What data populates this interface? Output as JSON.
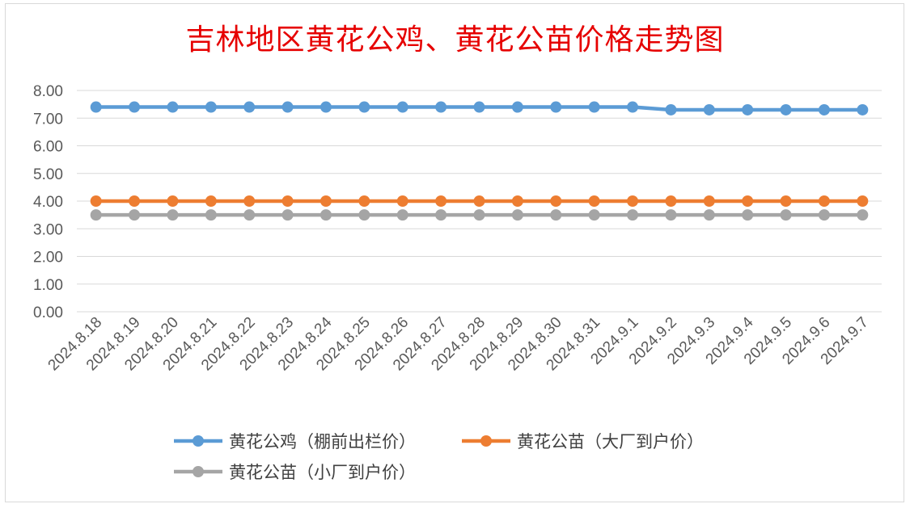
{
  "chart_data": {
    "type": "line",
    "title": "吉林地区黄花公鸡、黄花公苗价格走势图",
    "xlabel": "",
    "ylabel": "",
    "ylim": [
      0,
      8
    ],
    "yticks": [
      "0.00",
      "1.00",
      "2.00",
      "3.00",
      "4.00",
      "5.00",
      "6.00",
      "7.00",
      "8.00"
    ],
    "grid": true,
    "legend_position": "bottom",
    "categories": [
      "2024.8.18",
      "2024.8.19",
      "2024.8.20",
      "2024.8.21",
      "2024.8.22",
      "2024.8.23",
      "2024.8.24",
      "2024.8.25",
      "2024.8.26",
      "2024.8.27",
      "2024.8.28",
      "2024.8.29",
      "2024.8.30",
      "2024.8.31",
      "2024.9.1",
      "2024.9.2",
      "2024.9.3",
      "2024.9.4",
      "2024.9.5",
      "2024.9.6",
      "2024.9.7"
    ],
    "series": [
      {
        "name": "黄花公鸡（棚前出栏价）",
        "color": "#5b9bd5",
        "values": [
          7.4,
          7.4,
          7.4,
          7.4,
          7.4,
          7.4,
          7.4,
          7.4,
          7.4,
          7.4,
          7.4,
          7.4,
          7.4,
          7.4,
          7.4,
          7.3,
          7.3,
          7.3,
          7.3,
          7.3,
          7.3
        ]
      },
      {
        "name": "黄花公苗（大厂到户价）",
        "color": "#ed7d31",
        "values": [
          4.0,
          4.0,
          4.0,
          4.0,
          4.0,
          4.0,
          4.0,
          4.0,
          4.0,
          4.0,
          4.0,
          4.0,
          4.0,
          4.0,
          4.0,
          4.0,
          4.0,
          4.0,
          4.0,
          4.0,
          4.0
        ]
      },
      {
        "name": "黄花公苗（小厂到户价）",
        "color": "#a5a5a5",
        "values": [
          3.5,
          3.5,
          3.5,
          3.5,
          3.5,
          3.5,
          3.5,
          3.5,
          3.5,
          3.5,
          3.5,
          3.5,
          3.5,
          3.5,
          3.5,
          3.5,
          3.5,
          3.5,
          3.5,
          3.5,
          3.5
        ]
      }
    ]
  }
}
